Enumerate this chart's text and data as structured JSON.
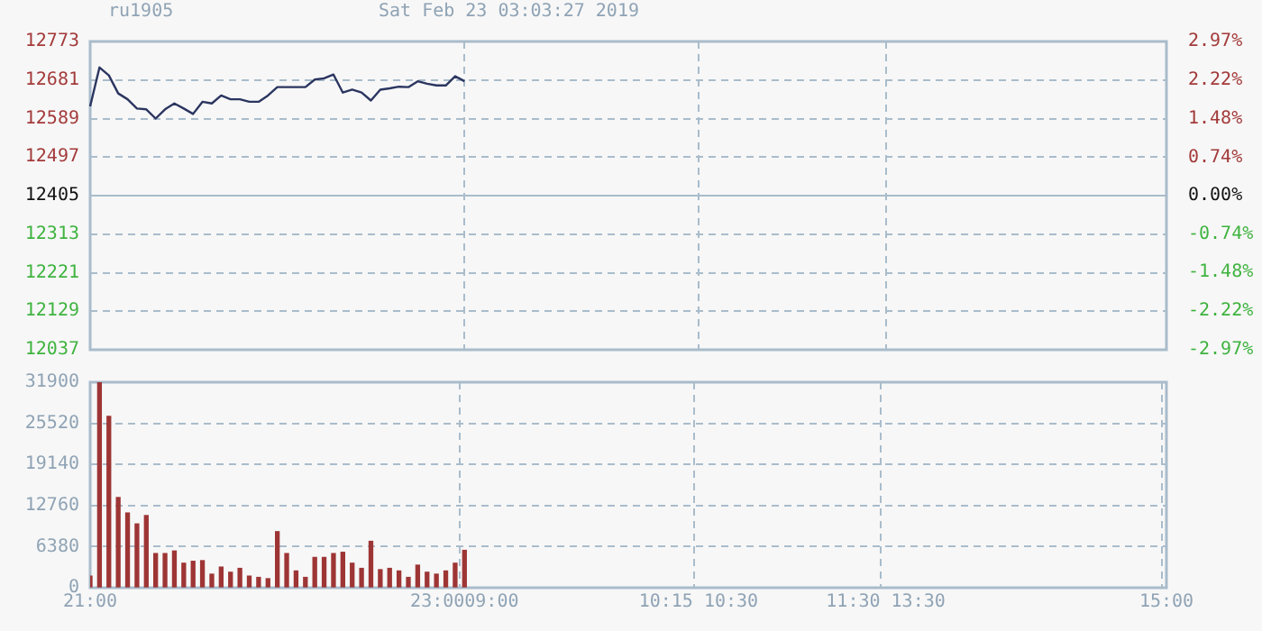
{
  "chart_data": [
    {
      "type": "line",
      "title": "ru1905",
      "subtitle": "Sat Feb 23 03:03:27 2019",
      "color": "#2b3560",
      "marker": "none",
      "grid": true,
      "tick_labels": "y",
      "categories": [
        null,
        null,
        null,
        null,
        null,
        null,
        null,
        null,
        null,
        null,
        null,
        null,
        null,
        null,
        null,
        null,
        null,
        null,
        null,
        null,
        null,
        null,
        null,
        null,
        null,
        null,
        null,
        null,
        null,
        null,
        null,
        null,
        null,
        null,
        null,
        null,
        null,
        null,
        null,
        null,
        null,
        null,
        null,
        null,
        null,
        null,
        null,
        null,
        null,
        null,
        null,
        null,
        null,
        null,
        null,
        null,
        null,
        null,
        null,
        null,
        null,
        null,
        null,
        null,
        null,
        null,
        null,
        null,
        null,
        null,
        null,
        null,
        null,
        null,
        null,
        null,
        null,
        null,
        null,
        null,
        null,
        null,
        null,
        null,
        null,
        null,
        null,
        null,
        null,
        null,
        null,
        null,
        null,
        null,
        null,
        null,
        null,
        null,
        null,
        null,
        null,
        null,
        null,
        null,
        null,
        null,
        null,
        null,
        null,
        null,
        null,
        null,
        null,
        null,
        null,
        null
      ],
      "values": [
        12618,
        12711,
        12692,
        12649,
        12635,
        12613,
        12611,
        12589,
        12611,
        12625,
        12613,
        12600,
        12629,
        12625,
        12644,
        12635,
        12635,
        12629,
        12629,
        12644,
        12664,
        12664,
        12664,
        12664,
        12682,
        12685,
        12694,
        12651,
        12658,
        12651,
        12632,
        12658,
        12661,
        12665,
        12664,
        12678,
        12672,
        12668,
        12668,
        12690,
        12678,
        null,
        null,
        null,
        null,
        null,
        null,
        null,
        null,
        null,
        null,
        null,
        null,
        null,
        null,
        null,
        null,
        null,
        null,
        null,
        null,
        null,
        null,
        null,
        null,
        null,
        null,
        null,
        null,
        null,
        null,
        null,
        null,
        null,
        null,
        null,
        null,
        null,
        null,
        null,
        null,
        null,
        null,
        null,
        null,
        null,
        null,
        null,
        null,
        null,
        null,
        null,
        null,
        null,
        null,
        null,
        null,
        null,
        null,
        null,
        null,
        null,
        null,
        null,
        null,
        null,
        null,
        null,
        null,
        null,
        null,
        null,
        null,
        null,
        null,
        null
      ],
      "ylim": [
        12037,
        12773
      ],
      "yticks": [
        12037,
        12129,
        12221,
        12313,
        12405,
        12497,
        12589,
        12681,
        12773
      ],
      "y2lim": [
        -2.97,
        2.97
      ],
      "y2ticks": [
        {
          "value": -2.97,
          "label": "-2.97%"
        },
        {
          "value": -2.22,
          "label": "-2.22%"
        },
        {
          "value": -1.48,
          "label": "-1.48%"
        },
        {
          "value": -0.74,
          "label": "-0.74%"
        },
        {
          "value": 0,
          "label": "0.00%"
        },
        {
          "value": 0.74,
          "label": "0.74%"
        },
        {
          "value": 1.48,
          "label": "1.48%"
        },
        {
          "value": 2.22,
          "label": "2.22%"
        },
        {
          "value": 2.97,
          "label": "2.97%"
        }
      ],
      "ref_lines": [
        {
          "axis": "y",
          "value": 12405,
          "line_style": "solid"
        }
      ]
    },
    {
      "type": "bar",
      "color": "#9e3535",
      "grid": true,
      "categories": [
        "21:00",
        null,
        null,
        null,
        null,
        null,
        null,
        null,
        null,
        null,
        null,
        null,
        null,
        null,
        null,
        null,
        null,
        null,
        null,
        null,
        null,
        null,
        null,
        null,
        null,
        null,
        null,
        null,
        null,
        null,
        null,
        null,
        null,
        null,
        null,
        null,
        null,
        null,
        null,
        null,
        "23:0009:00",
        null,
        null,
        null,
        null,
        null,
        null,
        null,
        null,
        null,
        null,
        null,
        null,
        null,
        null,
        null,
        null,
        null,
        null,
        null,
        null,
        null,
        null,
        null,
        null,
        "10:15 10:30",
        null,
        null,
        null,
        null,
        null,
        null,
        null,
        null,
        null,
        null,
        null,
        null,
        null,
        null,
        null,
        null,
        null,
        null,
        null,
        "11:30 13:30",
        null,
        null,
        null,
        null,
        null,
        null,
        null,
        null,
        null,
        null,
        null,
        null,
        null,
        null,
        null,
        null,
        null,
        null,
        null,
        null,
        null,
        null,
        null,
        null,
        null,
        null,
        null,
        null,
        null,
        "15:00"
      ],
      "values": [
        1800,
        31900,
        26600,
        14000,
        11600,
        9900,
        11200,
        5300,
        5300,
        5700,
        3800,
        4100,
        4200,
        2100,
        3200,
        2400,
        3000,
        1800,
        1600,
        1400,
        8700,
        5300,
        2600,
        1600,
        4700,
        4700,
        5300,
        5500,
        3800,
        3000,
        7200,
        2800,
        3000,
        2600,
        1600,
        3500,
        2400,
        2100,
        2600,
        3800,
        5800,
        null,
        null,
        null,
        null,
        null,
        null,
        null,
        null,
        null,
        null,
        null,
        null,
        null,
        null,
        null,
        null,
        null,
        null,
        null,
        null,
        null,
        null,
        null,
        null,
        null,
        null,
        null,
        null,
        null,
        null,
        null,
        null,
        null,
        null,
        null,
        null,
        null,
        null,
        null,
        null,
        null,
        null,
        null,
        null,
        null,
        null,
        null,
        null,
        null,
        null,
        null,
        null,
        null,
        null,
        null,
        null,
        null,
        null,
        null,
        null,
        null,
        null,
        null,
        null,
        null,
        null,
        null,
        null,
        null,
        null,
        null,
        null,
        null,
        null,
        null
      ],
      "ylim": [
        0,
        31900
      ],
      "yticks": [
        0,
        6380,
        12760,
        19140,
        25520,
        31900
      ]
    }
  ]
}
